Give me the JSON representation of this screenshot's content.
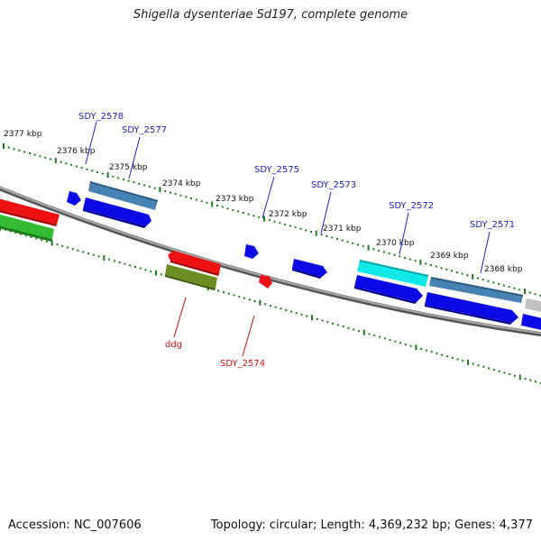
{
  "title": "Shigella dysenteriae Sd197, complete genome",
  "footer": {
    "accession": "Accession: NC_007606",
    "topology": "Topology: circular; Length: 4,369,232 bp; Genes: 4,377"
  },
  "colors": {
    "backbone": "#808080",
    "tick": "#1e7a1e",
    "gene_label_blue": "#2020c8",
    "gene_label_red": "#cc1111",
    "blue": "#0a0ae6",
    "red": "#ee1111",
    "green": "#33bb33",
    "olive": "#6b8e23",
    "steel": "#4682b4",
    "cyan": "#11e8e8",
    "gray": "#c0c0c0"
  },
  "scale_labels": [
    "2377 kbp",
    "2376 kbp",
    "2375 kbp",
    "2374 kbp",
    "2373 kbp",
    "2372 kbp",
    "2371 kbp",
    "2370 kbp",
    "2369 kbp",
    "2368 kbp"
  ],
  "gene_labels_top": [
    "SDY_2578",
    "SDY_2577",
    "SDY_2575",
    "SDY_2573",
    "SDY_2572",
    "SDY_2571"
  ],
  "gene_labels_bottom": [
    "ddg",
    "SDY_2574"
  ]
}
